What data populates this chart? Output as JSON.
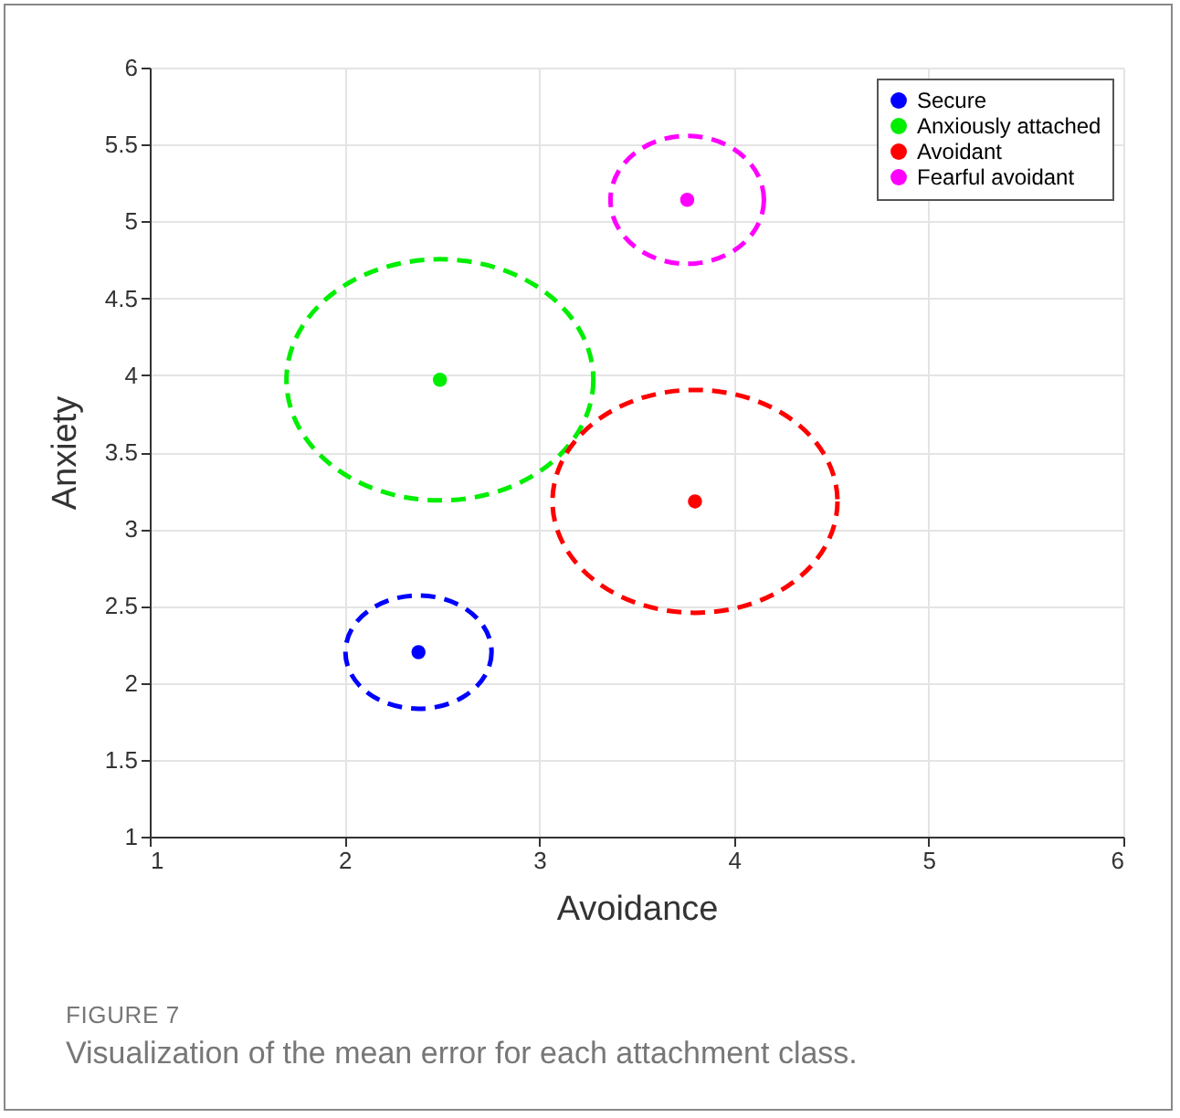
{
  "chart_data": {
    "type": "scatter",
    "xlabel": "Avoidance",
    "ylabel": "Anxiety",
    "annotations": [
      "FIGURE 7",
      "Visualization of the mean error for each attachment class."
    ],
    "series": [
      {
        "name": "Secure",
        "color": "#0000ff",
        "x": [
          2.38
        ],
        "values": [
          2.2
        ]
      },
      {
        "name": "Anxiously attached",
        "color": "#00ee00",
        "x": [
          2.49
        ],
        "values": [
          3.97
        ]
      },
      {
        "name": "Avoidant",
        "color": "#ff0000",
        "x": [
          3.8
        ],
        "values": [
          3.18
        ]
      },
      {
        "name": "Fearful avoidant",
        "color": "#ff00ff",
        "x": [
          3.76
        ],
        "values": [
          5.14
        ]
      }
    ],
    "xlim": [
      1,
      6
    ],
    "xticks": [
      1,
      2,
      3,
      4,
      5,
      6
    ],
    "ylim": [
      1,
      6
    ],
    "yticks": [
      1,
      1.5,
      2,
      2.5,
      3,
      3.5,
      4,
      4.5,
      5,
      5.5,
      6
    ],
    "grid": true,
    "legend": "top right",
    "marker": "circle"
  }
}
